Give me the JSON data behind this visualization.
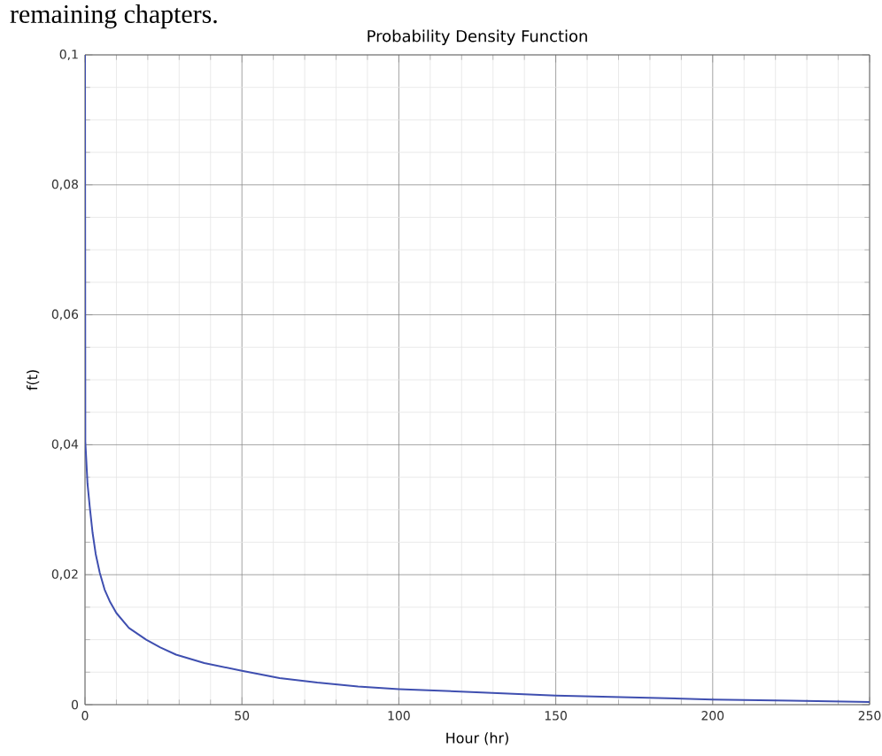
{
  "chart_data": {
    "type": "line",
    "title": "Probability Density Function",
    "xlabel": "Hour (hr)",
    "ylabel": "f(t)",
    "annotations": [
      "remaining chapters."
    ],
    "x": [
      0,
      0.1,
      0.8,
      1.5,
      2.4,
      3.4,
      4.7,
      6.25,
      8,
      10,
      14,
      19.5,
      24,
      29,
      38,
      50,
      62,
      74,
      87,
      100,
      125,
      150,
      175,
      200,
      225,
      250
    ],
    "series": [
      {
        "color": "#3f4fb0",
        "values": [
          0.1,
          0.0405,
          0.034,
          0.0305,
          0.0265,
          0.0232,
          0.0203,
          0.0177,
          0.0158,
          0.0141,
          0.0118,
          0.01,
          0.0088,
          0.0077,
          0.0064,
          0.0052,
          0.0041,
          0.0034,
          0.0028,
          0.0024,
          0.0019,
          0.0014,
          0.0011,
          0.0008,
          0.0006,
          0.0004
        ]
      }
    ],
    "xlim": [
      0,
      250
    ],
    "ylim": [
      0,
      0.1
    ],
    "xticks": [
      0,
      50,
      100,
      150,
      200,
      250
    ],
    "yticks": [
      0,
      {
        "value": 0.02,
        "label": "0,02"
      },
      {
        "value": 0.04,
        "label": "0,04"
      },
      {
        "value": 0.06,
        "label": "0,06"
      },
      {
        "value": 0.08,
        "label": "0,08"
      },
      {
        "value": 0.1,
        "label": "0,1"
      }
    ],
    "grid": true,
    "marker": "none",
    "line_style": "solid"
  }
}
